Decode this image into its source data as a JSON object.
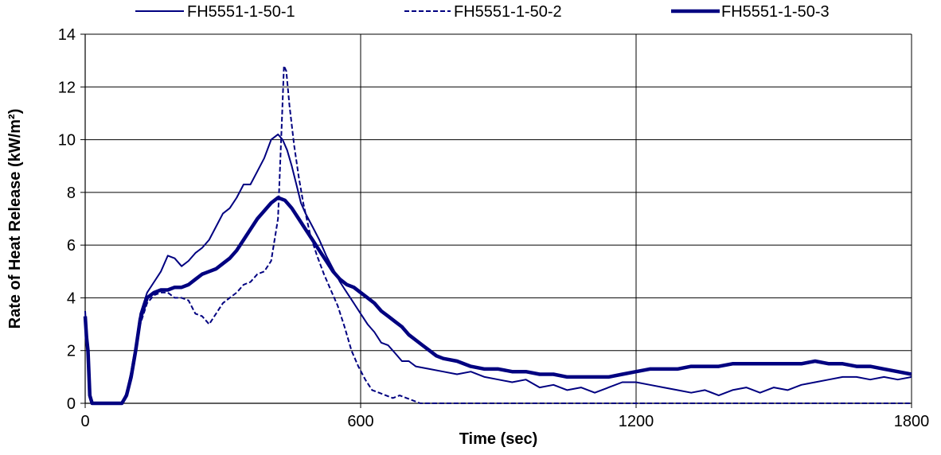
{
  "chart_data": {
    "type": "line",
    "title": "",
    "xlabel": "Time (sec)",
    "ylabel": "Rate of Heat Release (kW/m²)",
    "xlim": [
      0,
      1800
    ],
    "ylim": [
      0,
      14
    ],
    "x_ticks": [
      0,
      600,
      1200,
      1800
    ],
    "y_ticks": [
      0,
      2,
      4,
      6,
      8,
      10,
      12,
      14
    ],
    "grid": true,
    "legend_position": "top",
    "line_color": "#000080",
    "series": [
      {
        "name": "FH5551-1-50-1",
        "style": "solid-thin",
        "points": [
          [
            0,
            3.5
          ],
          [
            3,
            2.6
          ],
          [
            6,
            2.2
          ],
          [
            10,
            0.3
          ],
          [
            15,
            0
          ],
          [
            80,
            0
          ],
          [
            90,
            0.4
          ],
          [
            100,
            1.2
          ],
          [
            110,
            2.2
          ],
          [
            120,
            3.4
          ],
          [
            135,
            4.2
          ],
          [
            150,
            4.6
          ],
          [
            165,
            5.0
          ],
          [
            180,
            5.6
          ],
          [
            195,
            5.5
          ],
          [
            210,
            5.2
          ],
          [
            225,
            5.4
          ],
          [
            240,
            5.7
          ],
          [
            255,
            5.9
          ],
          [
            270,
            6.2
          ],
          [
            285,
            6.7
          ],
          [
            300,
            7.2
          ],
          [
            315,
            7.4
          ],
          [
            330,
            7.8
          ],
          [
            345,
            8.3
          ],
          [
            360,
            8.3
          ],
          [
            375,
            8.8
          ],
          [
            390,
            9.3
          ],
          [
            405,
            10.0
          ],
          [
            420,
            10.2
          ],
          [
            430,
            10.0
          ],
          [
            440,
            9.6
          ],
          [
            450,
            9.0
          ],
          [
            460,
            8.3
          ],
          [
            470,
            7.6
          ],
          [
            480,
            7.2
          ],
          [
            495,
            6.7
          ],
          [
            510,
            6.2
          ],
          [
            525,
            5.6
          ],
          [
            540,
            5.1
          ],
          [
            555,
            4.6
          ],
          [
            570,
            4.2
          ],
          [
            585,
            3.8
          ],
          [
            600,
            3.4
          ],
          [
            615,
            3.0
          ],
          [
            630,
            2.7
          ],
          [
            645,
            2.3
          ],
          [
            660,
            2.2
          ],
          [
            675,
            1.9
          ],
          [
            690,
            1.6
          ],
          [
            705,
            1.6
          ],
          [
            720,
            1.4
          ],
          [
            750,
            1.3
          ],
          [
            780,
            1.2
          ],
          [
            810,
            1.1
          ],
          [
            840,
            1.2
          ],
          [
            870,
            1.0
          ],
          [
            900,
            0.9
          ],
          [
            930,
            0.8
          ],
          [
            960,
            0.9
          ],
          [
            990,
            0.6
          ],
          [
            1020,
            0.7
          ],
          [
            1050,
            0.5
          ],
          [
            1080,
            0.6
          ],
          [
            1110,
            0.4
          ],
          [
            1140,
            0.6
          ],
          [
            1170,
            0.8
          ],
          [
            1200,
            0.8
          ],
          [
            1230,
            0.7
          ],
          [
            1260,
            0.6
          ],
          [
            1290,
            0.5
          ],
          [
            1320,
            0.4
          ],
          [
            1350,
            0.5
          ],
          [
            1380,
            0.3
          ],
          [
            1410,
            0.5
          ],
          [
            1440,
            0.6
          ],
          [
            1470,
            0.4
          ],
          [
            1500,
            0.6
          ],
          [
            1530,
            0.5
          ],
          [
            1560,
            0.7
          ],
          [
            1590,
            0.8
          ],
          [
            1620,
            0.9
          ],
          [
            1650,
            1.0
          ],
          [
            1680,
            1.0
          ],
          [
            1710,
            0.9
          ],
          [
            1740,
            1.0
          ],
          [
            1770,
            0.9
          ],
          [
            1800,
            1.0
          ]
        ]
      },
      {
        "name": "FH5551-1-50-2",
        "style": "dashed",
        "points": [
          [
            0,
            3.2
          ],
          [
            3,
            2.8
          ],
          [
            6,
            2.0
          ],
          [
            10,
            0.3
          ],
          [
            15,
            0
          ],
          [
            80,
            0
          ],
          [
            90,
            0.3
          ],
          [
            100,
            1.0
          ],
          [
            110,
            2.0
          ],
          [
            120,
            3.0
          ],
          [
            135,
            3.8
          ],
          [
            150,
            4.1
          ],
          [
            165,
            4.2
          ],
          [
            180,
            4.2
          ],
          [
            195,
            4.0
          ],
          [
            210,
            4.0
          ],
          [
            225,
            3.9
          ],
          [
            240,
            3.4
          ],
          [
            255,
            3.3
          ],
          [
            270,
            3.0
          ],
          [
            285,
            3.4
          ],
          [
            300,
            3.8
          ],
          [
            315,
            4.0
          ],
          [
            330,
            4.2
          ],
          [
            345,
            4.5
          ],
          [
            360,
            4.6
          ],
          [
            375,
            4.9
          ],
          [
            390,
            5.0
          ],
          [
            405,
            5.4
          ],
          [
            420,
            7.0
          ],
          [
            428,
            10.5
          ],
          [
            433,
            12.8
          ],
          [
            438,
            12.6
          ],
          [
            445,
            11.3
          ],
          [
            455,
            9.8
          ],
          [
            465,
            8.6
          ],
          [
            475,
            7.6
          ],
          [
            490,
            6.4
          ],
          [
            505,
            5.6
          ],
          [
            520,
            4.9
          ],
          [
            535,
            4.3
          ],
          [
            550,
            3.7
          ],
          [
            565,
            2.9
          ],
          [
            580,
            2.0
          ],
          [
            595,
            1.4
          ],
          [
            610,
            0.9
          ],
          [
            625,
            0.5
          ],
          [
            640,
            0.4
          ],
          [
            655,
            0.3
          ],
          [
            670,
            0.2
          ],
          [
            685,
            0.3
          ],
          [
            700,
            0.2
          ],
          [
            715,
            0.1
          ],
          [
            730,
            0
          ],
          [
            1800,
            0
          ]
        ]
      },
      {
        "name": "FH5551-1-50-3",
        "style": "solid-thick",
        "points": [
          [
            0,
            3.3
          ],
          [
            3,
            2.5
          ],
          [
            6,
            2.0
          ],
          [
            10,
            0.3
          ],
          [
            15,
            0
          ],
          [
            80,
            0
          ],
          [
            90,
            0.3
          ],
          [
            100,
            1.0
          ],
          [
            110,
            2.0
          ],
          [
            120,
            3.2
          ],
          [
            135,
            4.0
          ],
          [
            150,
            4.2
          ],
          [
            165,
            4.3
          ],
          [
            180,
            4.3
          ],
          [
            195,
            4.4
          ],
          [
            210,
            4.4
          ],
          [
            225,
            4.5
          ],
          [
            240,
            4.7
          ],
          [
            255,
            4.9
          ],
          [
            270,
            5.0
          ],
          [
            285,
            5.1
          ],
          [
            300,
            5.3
          ],
          [
            315,
            5.5
          ],
          [
            330,
            5.8
          ],
          [
            345,
            6.2
          ],
          [
            360,
            6.6
          ],
          [
            375,
            7.0
          ],
          [
            390,
            7.3
          ],
          [
            405,
            7.6
          ],
          [
            420,
            7.8
          ],
          [
            435,
            7.7
          ],
          [
            450,
            7.4
          ],
          [
            465,
            7.0
          ],
          [
            480,
            6.6
          ],
          [
            495,
            6.2
          ],
          [
            510,
            5.8
          ],
          [
            525,
            5.4
          ],
          [
            540,
            5.0
          ],
          [
            555,
            4.7
          ],
          [
            570,
            4.5
          ],
          [
            585,
            4.4
          ],
          [
            600,
            4.2
          ],
          [
            615,
            4.0
          ],
          [
            630,
            3.8
          ],
          [
            645,
            3.5
          ],
          [
            660,
            3.3
          ],
          [
            675,
            3.1
          ],
          [
            690,
            2.9
          ],
          [
            705,
            2.6
          ],
          [
            720,
            2.4
          ],
          [
            735,
            2.2
          ],
          [
            750,
            2.0
          ],
          [
            765,
            1.8
          ],
          [
            780,
            1.7
          ],
          [
            810,
            1.6
          ],
          [
            840,
            1.4
          ],
          [
            870,
            1.3
          ],
          [
            900,
            1.3
          ],
          [
            930,
            1.2
          ],
          [
            960,
            1.2
          ],
          [
            990,
            1.1
          ],
          [
            1020,
            1.1
          ],
          [
            1050,
            1.0
          ],
          [
            1080,
            1.0
          ],
          [
            1110,
            1.0
          ],
          [
            1140,
            1.0
          ],
          [
            1170,
            1.1
          ],
          [
            1200,
            1.2
          ],
          [
            1230,
            1.3
          ],
          [
            1260,
            1.3
          ],
          [
            1290,
            1.3
          ],
          [
            1320,
            1.4
          ],
          [
            1350,
            1.4
          ],
          [
            1380,
            1.4
          ],
          [
            1410,
            1.5
          ],
          [
            1440,
            1.5
          ],
          [
            1470,
            1.5
          ],
          [
            1500,
            1.5
          ],
          [
            1530,
            1.5
          ],
          [
            1560,
            1.5
          ],
          [
            1590,
            1.6
          ],
          [
            1620,
            1.5
          ],
          [
            1650,
            1.5
          ],
          [
            1680,
            1.4
          ],
          [
            1710,
            1.4
          ],
          [
            1740,
            1.3
          ],
          [
            1770,
            1.2
          ],
          [
            1800,
            1.1
          ]
        ]
      }
    ]
  }
}
